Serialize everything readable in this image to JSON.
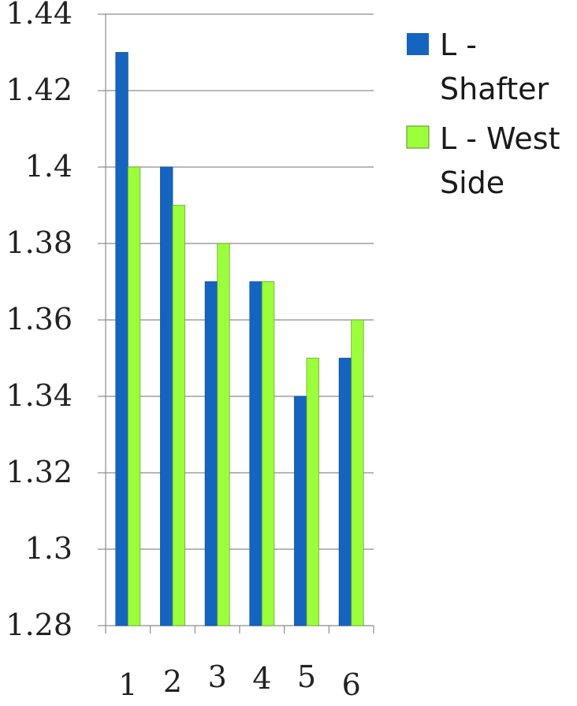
{
  "chart_data": {
    "type": "bar",
    "categories": [
      "1",
      "2",
      "3",
      "4",
      "5",
      "6"
    ],
    "series": [
      {
        "name": "L - Shafter",
        "values": [
          1.43,
          1.4,
          1.37,
          1.37,
          1.34,
          1.35
        ],
        "color": "#1565C0"
      },
      {
        "name": "L - West Side",
        "values": [
          1.4,
          1.39,
          1.38,
          1.37,
          1.35,
          1.36
        ],
        "color": "#9CFF3C"
      }
    ],
    "y_ticks": [
      "1.28",
      "1.3",
      "1.32",
      "1.34",
      "1.36",
      "1.38",
      "1.4",
      "1.42",
      "1.44"
    ],
    "ylim": [
      1.28,
      1.44
    ],
    "grid": true,
    "legend_position": "right",
    "legend": {
      "shafter": [
        "L -",
        "Shafter"
      ],
      "west_side": [
        "L - West",
        "Side"
      ]
    }
  }
}
